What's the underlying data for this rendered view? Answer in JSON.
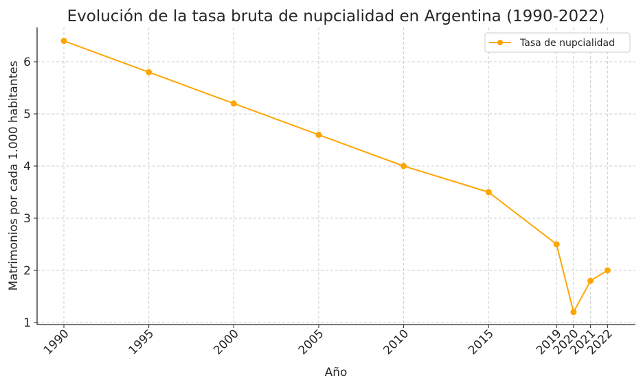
{
  "chart_data": {
    "type": "line",
    "title": "Evolución de la tasa bruta de nupcialidad en Argentina (1990-2022)",
    "xlabel": "Año",
    "ylabel": "Matrimonios por cada 1.000 habitantes",
    "x": [
      1990,
      1995,
      2000,
      2005,
      2010,
      2015,
      2019,
      2020,
      2021,
      2022
    ],
    "series": [
      {
        "name": "Tasa de nupcialidad",
        "values": [
          6.4,
          5.8,
          5.2,
          4.6,
          4.0,
          3.5,
          2.5,
          1.2,
          1.8,
          2.0
        ],
        "color": "#FFA500",
        "marker": "o"
      }
    ],
    "xticks": [
      "1990",
      "1995",
      "2000",
      "2005",
      "2010",
      "2015",
      "2019",
      "2020",
      "2021",
      "2022"
    ],
    "yticks": [
      "1",
      "2",
      "3",
      "4",
      "5",
      "6"
    ],
    "ylim": [
      0.95,
      6.65
    ],
    "grid": true,
    "grid_style": "dashed",
    "legend_position": "upper right",
    "xtick_rotation": 45
  }
}
